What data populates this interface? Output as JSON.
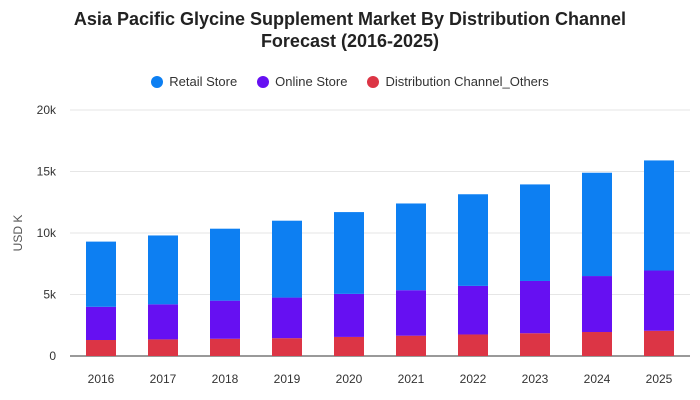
{
  "chart_data": {
    "type": "bar",
    "stacked": true,
    "title_lines": [
      "Asia Pacific Glycine Supplement Market By Distribution Channel",
      "Forecast (2016-2025)"
    ],
    "xlabel": "",
    "ylabel": "USD K",
    "ylim": [
      0,
      20000
    ],
    "yticks": [
      {
        "value": 0,
        "label": "0"
      },
      {
        "value": 5000,
        "label": "5k"
      },
      {
        "value": 10000,
        "label": "10k"
      },
      {
        "value": 15000,
        "label": "15k"
      },
      {
        "value": 20000,
        "label": "20k"
      }
    ],
    "categories": [
      "2016",
      "2017",
      "2018",
      "2019",
      "2020",
      "2021",
      "2022",
      "2023",
      "2024",
      "2025"
    ],
    "series": [
      {
        "name": "Distribution Channel_Others",
        "color": "#dc3545",
        "values": [
          1300,
          1350,
          1400,
          1450,
          1550,
          1650,
          1750,
          1850,
          1950,
          2050
        ]
      },
      {
        "name": "Online Store",
        "color": "#6610f2",
        "values": [
          2700,
          2850,
          3100,
          3300,
          3500,
          3700,
          3950,
          4250,
          4550,
          4900
        ]
      },
      {
        "name": "Retail Store",
        "color": "#0d7ff2",
        "values": [
          5300,
          5600,
          5850,
          6250,
          6650,
          7050,
          7450,
          7850,
          8400,
          8950
        ]
      }
    ],
    "legend_order": [
      "Retail Store",
      "Online Store",
      "Distribution Channel_Others"
    ],
    "legend_position": "top-center",
    "grid": true
  }
}
